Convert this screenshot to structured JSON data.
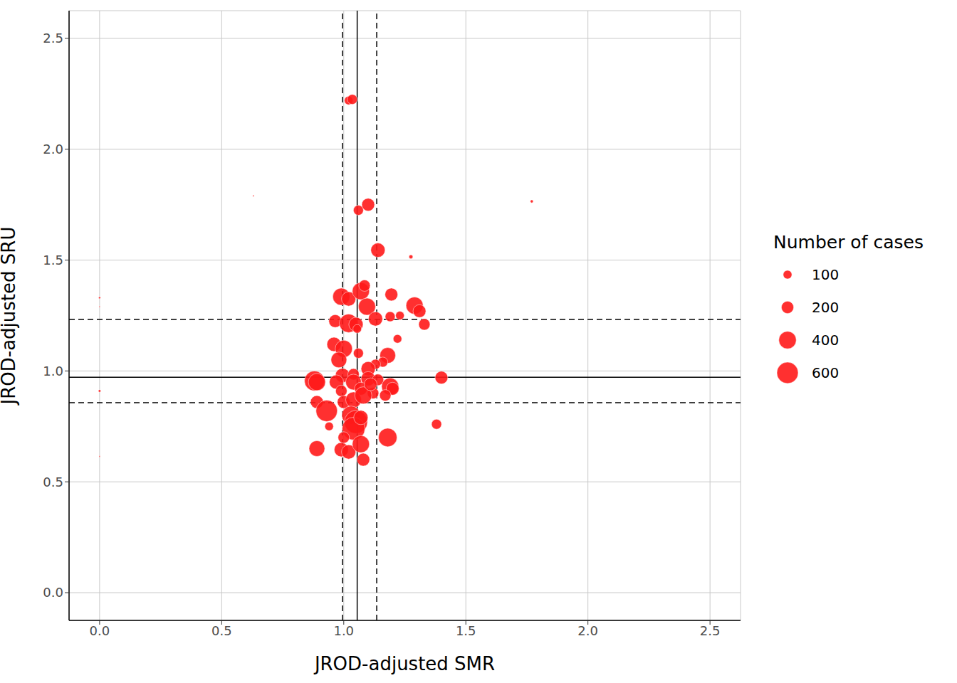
{
  "chart_data": {
    "type": "scatter",
    "marker": "circle",
    "color": "#ff1a1a",
    "grid": true,
    "x_label": "JROD-adjusted SMR",
    "y_label": "JROD-adjusted SRU",
    "xlim": [
      -0.125,
      2.625
    ],
    "ylim": [
      -0.125,
      2.625
    ],
    "xticks": [
      {
        "value": 0,
        "label": "0.0"
      },
      0.5,
      {
        "value": 1,
        "label": "1.0"
      },
      1.5,
      {
        "value": 2,
        "label": "2.0"
      },
      2.5
    ],
    "yticks": [
      {
        "value": 0,
        "label": "0.0"
      },
      0.5,
      {
        "value": 1,
        "label": "1.0"
      },
      1.5,
      {
        "value": 2,
        "label": "2.0"
      },
      2.5
    ],
    "x_reference": {
      "center": 1.055,
      "lower": 0.995,
      "upper": 1.135
    },
    "y_reference": {
      "center": 0.972,
      "lower": 0.857,
      "upper": 1.232
    },
    "size_legend_title": "Number of cases",
    "size_legend": [
      100,
      200,
      400,
      600
    ],
    "x": [
      0.0,
      0.0,
      0.0,
      0.0,
      0.63,
      1.77,
      1.275,
      1.02,
      1.035,
      1.06,
      1.1,
      1.14,
      0.99,
      1.02,
      1.07,
      1.085,
      1.095,
      1.195,
      1.29,
      1.31,
      1.33,
      1.19,
      1.23,
      1.13,
      0.965,
      1.02,
      1.05,
      1.055,
      1.22,
      0.96,
      1.0,
      0.98,
      1.06,
      1.18,
      1.16,
      1.13,
      1.1,
      0.995,
      1.04,
      0.88,
      0.89,
      0.97,
      1.04,
      1.1,
      1.14,
      1.19,
      1.2,
      1.4,
      0.99,
      1.07,
      1.12,
      1.17,
      0.89,
      1.0,
      1.04,
      1.08,
      0.93,
      1.03,
      1.05,
      1.04,
      1.07,
      0.94,
      1.38,
      1.18,
      0.89,
      0.99,
      1.02,
      1.07,
      1.08,
      1.0,
      1.11
    ],
    "y": [
      1.33,
      1.29,
      0.91,
      0.615,
      1.79,
      1.765,
      1.515,
      2.22,
      2.225,
      1.725,
      1.75,
      1.545,
      1.335,
      1.325,
      1.36,
      1.385,
      1.29,
      1.345,
      1.295,
      1.27,
      1.21,
      1.245,
      1.25,
      1.235,
      1.225,
      1.215,
      1.21,
      1.19,
      1.145,
      1.12,
      1.1,
      1.05,
      1.08,
      1.07,
      1.04,
      1.03,
      1.01,
      0.98,
      0.985,
      0.955,
      0.95,
      0.95,
      0.95,
      0.965,
      0.96,
      0.93,
      0.92,
      0.97,
      0.91,
      0.92,
      0.9,
      0.89,
      0.86,
      0.86,
      0.87,
      0.89,
      0.82,
      0.8,
      0.77,
      0.74,
      0.79,
      0.75,
      0.76,
      0.7,
      0.65,
      0.645,
      0.635,
      0.67,
      0.6,
      0.7,
      0.94
    ],
    "cases": [
      5,
      2,
      8,
      2,
      3,
      12,
      20,
      96,
      131,
      131,
      216,
      267,
      384,
      267,
      384,
      171,
      384,
      216,
      384,
      216,
      171,
      131,
      96,
      267,
      216,
      451,
      267,
      96,
      96,
      267,
      384,
      323,
      131,
      323,
      131,
      131,
      267,
      267,
      171,
      523,
      384,
      267,
      323,
      267,
      171,
      384,
      216,
      216,
      171,
      216,
      171,
      171,
      216,
      216,
      323,
      384,
      600,
      451,
      700,
      683,
      267,
      96,
      131,
      451,
      323,
      267,
      267,
      384,
      216,
      171,
      216
    ]
  }
}
